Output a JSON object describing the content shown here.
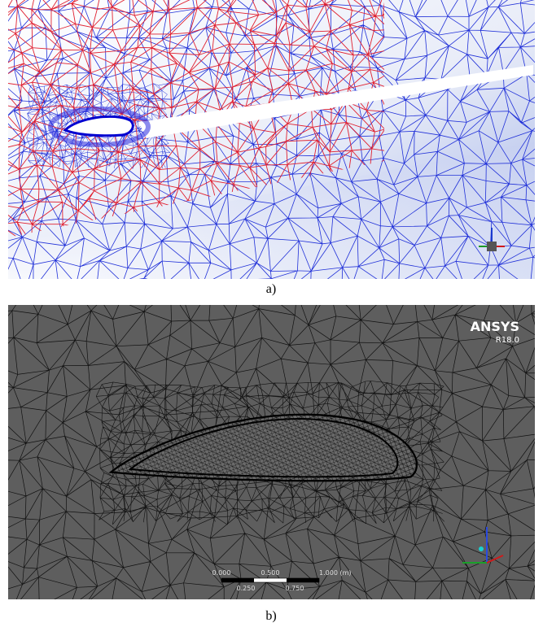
{
  "panel_a": {
    "caption": "a)"
  },
  "panel_b": {
    "caption": "b)",
    "logo": "ANSYS",
    "version": "R18.0",
    "scale_bar": {
      "top_labels": [
        "0.000",
        "0.500",
        "1.000 (m)"
      ],
      "bottom_labels": [
        "0.250",
        "0.750"
      ]
    }
  }
}
